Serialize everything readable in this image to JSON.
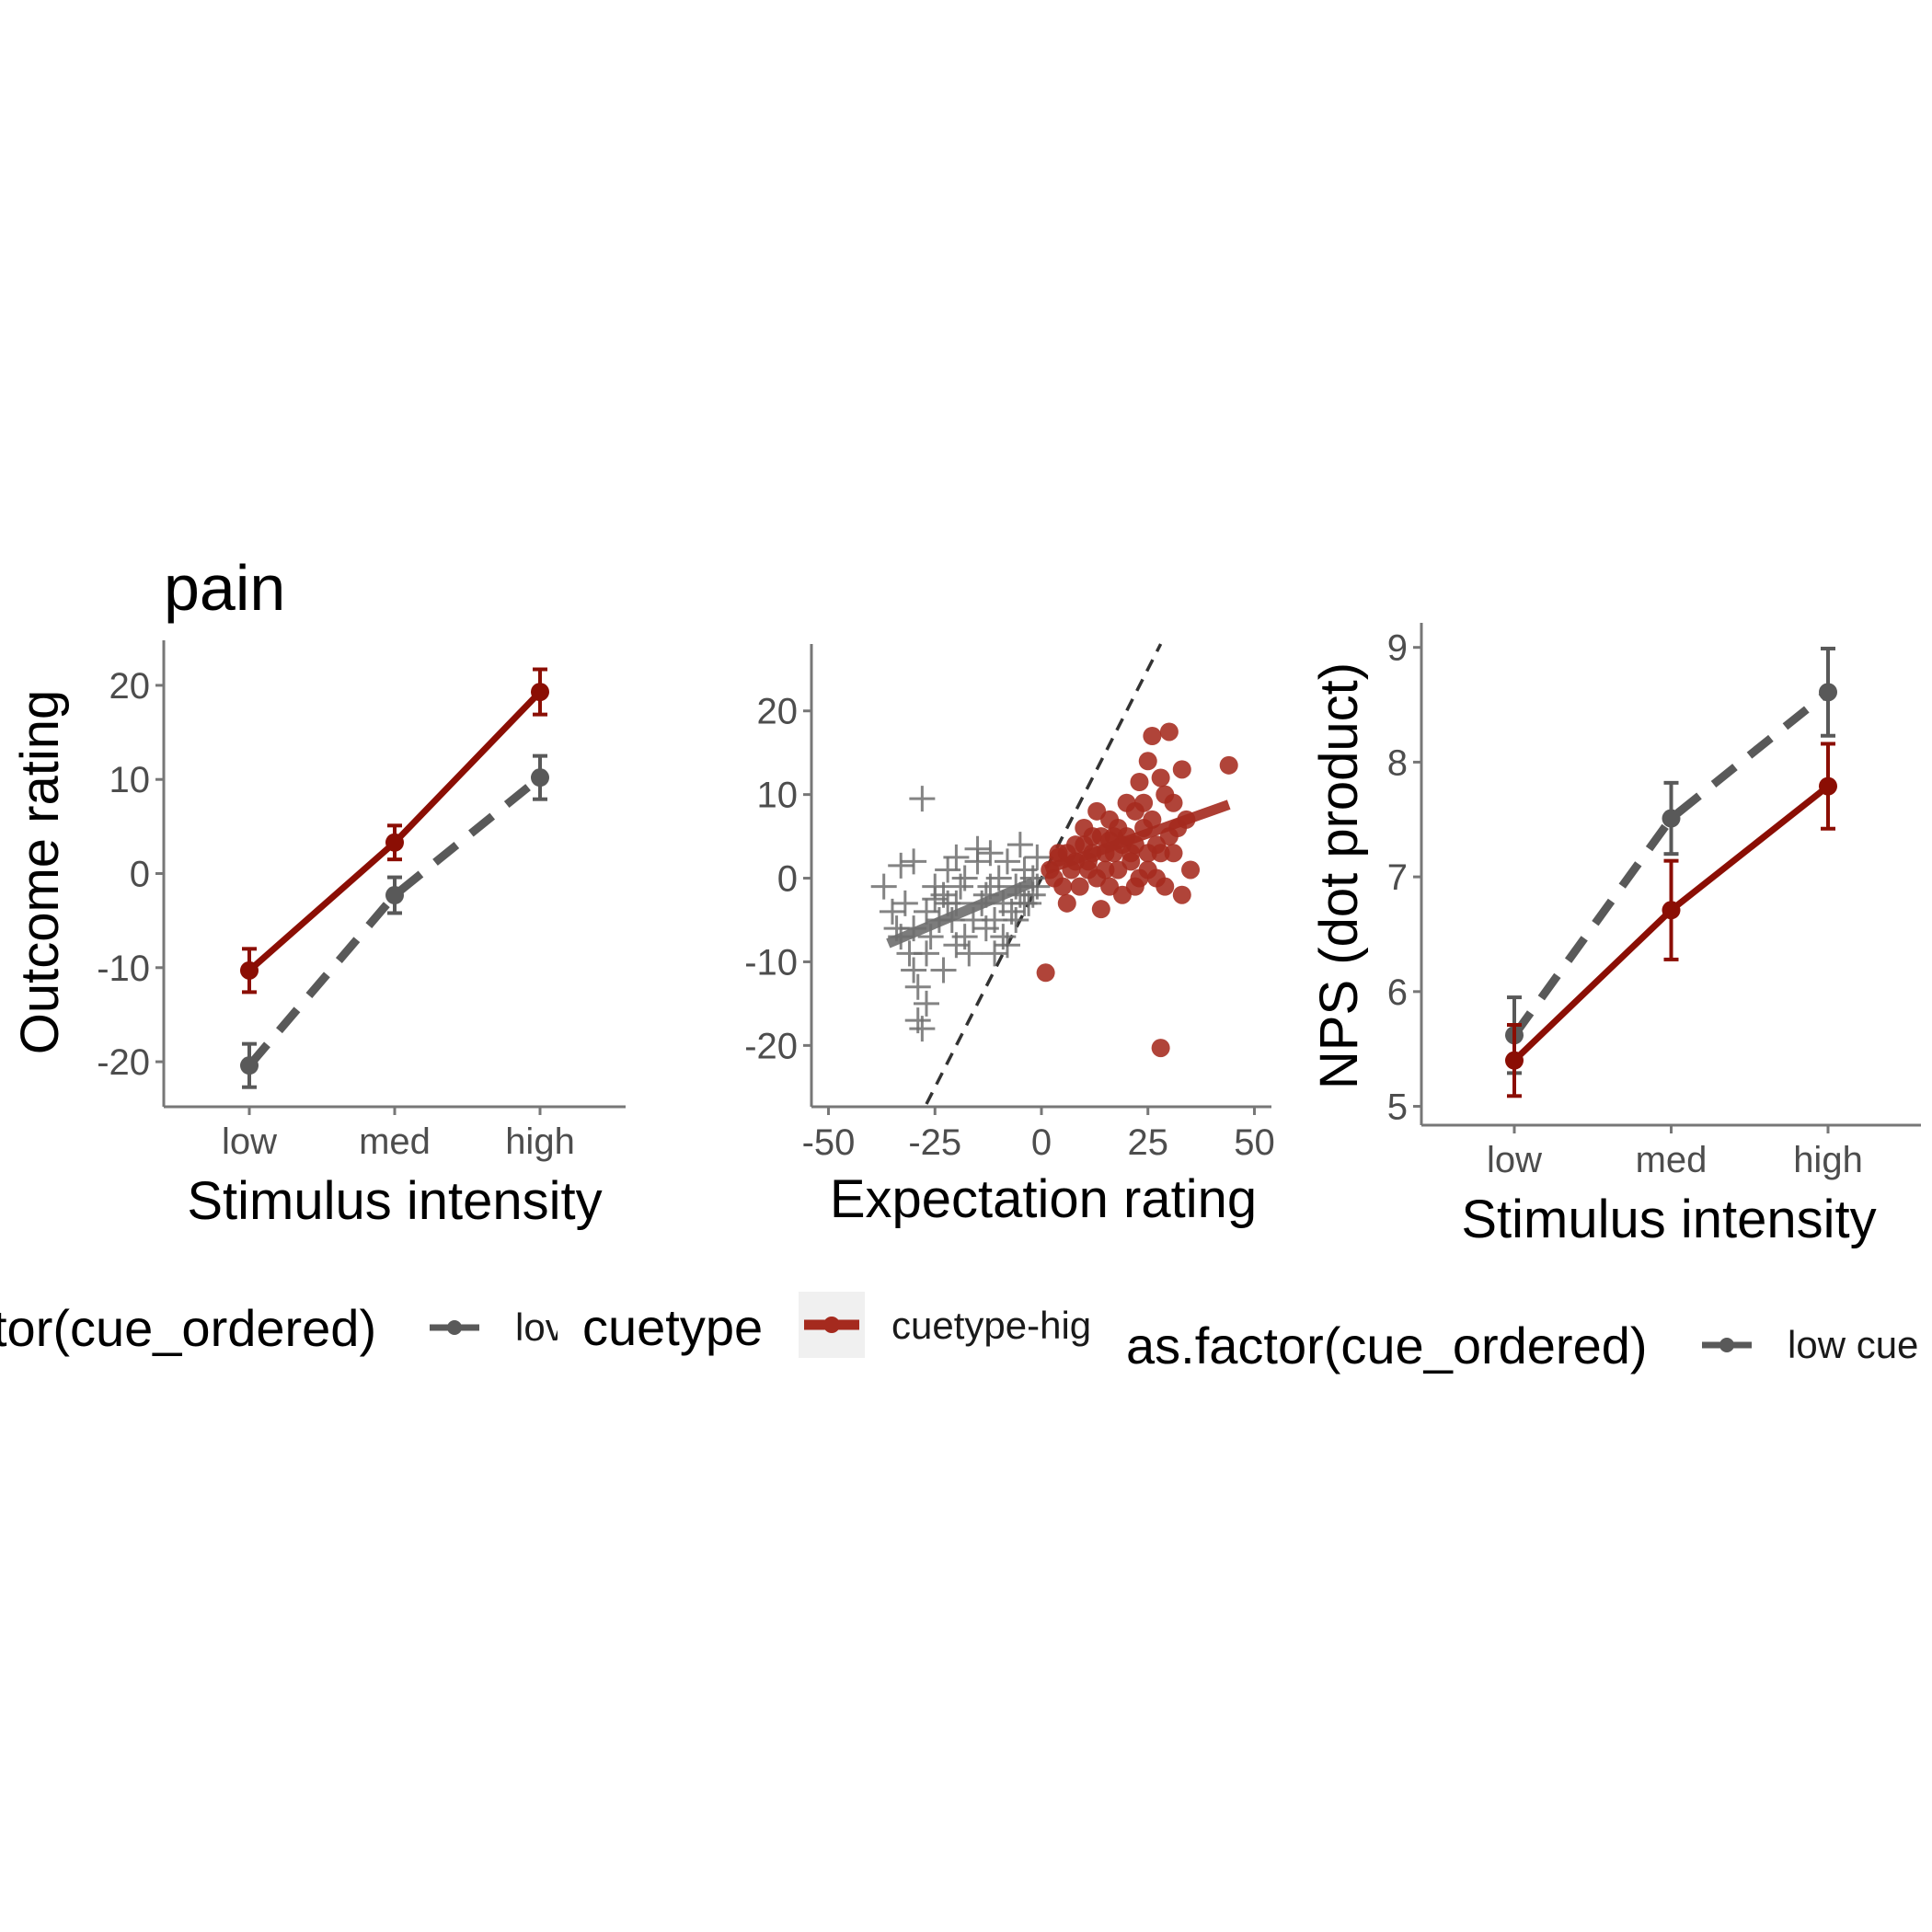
{
  "figure": {
    "colors": {
      "low_cue": "#595959",
      "high_cue": "#8b0e04",
      "scatter_low": "#6e6e6e",
      "scatter_high": "#a52a1e",
      "axis": "#777777",
      "identity_line": "#333333",
      "legend_key_bg": "#f0f0f0"
    }
  },
  "chart_data": [
    {
      "type": "line",
      "title": "pain",
      "xlabel": "Stimulus intensity",
      "ylabel": "Outcome rating",
      "categories": [
        "low",
        "med",
        "high"
      ],
      "yticks": [
        "-20",
        "-10",
        "0",
        "10",
        "20"
      ],
      "ylim": [
        -24,
        24
      ],
      "series": [
        {
          "key": "high_cue",
          "values": [
            -10.3,
            3.3,
            19.3
          ],
          "err": [
            2.3,
            1.8,
            2.4
          ],
          "line": "solid",
          "icon": "dot-icon"
        },
        {
          "key": "low_cue",
          "values": [
            -20.4,
            -2.3,
            10.2
          ],
          "err": [
            2.3,
            1.9,
            2.3
          ],
          "line": "dashed",
          "icon": "dot-icon"
        }
      ],
      "legend": {
        "title": "tor(cue_ordered)",
        "label": "lov"
      }
    },
    {
      "type": "scatter",
      "xlabel": "Expectation rating",
      "xticks": [
        "-50",
        "-25",
        "0",
        "25",
        "50"
      ],
      "yticks": [
        "-20",
        "-10",
        "0",
        "10",
        "20"
      ],
      "xlim": [
        -54,
        54
      ],
      "ylim": [
        -27,
        28
      ],
      "identity_line": true,
      "groups": [
        {
          "key": "low",
          "marker": "plus",
          "points": [
            [
              -28,
              9.5
            ],
            [
              -33,
              1.5
            ],
            [
              -37,
              -1
            ],
            [
              -30,
              2
            ],
            [
              -27,
              -4
            ],
            [
              -25,
              -2.5
            ],
            [
              -22,
              1
            ],
            [
              -20,
              -3
            ],
            [
              -18,
              0
            ],
            [
              -15,
              2
            ],
            [
              -13,
              -2
            ],
            [
              -12,
              3
            ],
            [
              -10,
              0
            ],
            [
              -8,
              2
            ],
            [
              -6,
              -1
            ],
            [
              -4,
              1
            ],
            [
              -2,
              0
            ],
            [
              -1,
              2.5
            ],
            [
              -5,
              4
            ],
            [
              -15,
              3.5
            ],
            [
              -20,
              2.5
            ],
            [
              -24,
              -5
            ],
            [
              -26,
              -7
            ],
            [
              -30,
              -6
            ],
            [
              -35,
              -4
            ],
            [
              -33,
              -7
            ],
            [
              -31,
              -9
            ],
            [
              -30,
              -11
            ],
            [
              -29,
              -13
            ],
            [
              -27,
              -15
            ],
            [
              -29,
              -17
            ],
            [
              -28,
              -18
            ],
            [
              -23,
              -11
            ],
            [
              -20,
              -8
            ],
            [
              -17,
              -9
            ],
            [
              -13,
              -6
            ],
            [
              -11,
              -9
            ],
            [
              -9,
              -7
            ],
            [
              -7,
              -4
            ],
            [
              -5,
              -2
            ],
            [
              -3,
              -3
            ],
            [
              -1,
              -1
            ],
            [
              -16,
              -5
            ],
            [
              -19,
              -1
            ],
            [
              -22,
              -3
            ],
            [
              -25,
              -1
            ],
            [
              -27,
              -9
            ],
            [
              -32,
              -3
            ],
            [
              -34,
              -6
            ],
            [
              -11,
              -5
            ],
            [
              -14,
              -3
            ],
            [
              -18,
              -7
            ],
            [
              -21,
              -5
            ],
            [
              -23,
              -2
            ],
            [
              -6,
              -5
            ],
            [
              -9,
              -3
            ],
            [
              -12,
              -1
            ],
            [
              -4,
              -3
            ],
            [
              -2,
              -2
            ],
            [
              -8,
              -8
            ]
          ]
        },
        {
          "key": "high",
          "marker": "dot",
          "points": [
            [
              1,
              -11.3
            ],
            [
              28,
              -20.3
            ],
            [
              44,
              13.5
            ],
            [
              26,
              17
            ],
            [
              30,
              17.5
            ],
            [
              25,
              14
            ],
            [
              23,
              11.5
            ],
            [
              28,
              12
            ],
            [
              33,
              13
            ],
            [
              24,
              9
            ],
            [
              29,
              10
            ],
            [
              31,
              9
            ],
            [
              34,
              7
            ],
            [
              22,
              8
            ],
            [
              20,
              5
            ],
            [
              18,
              6
            ],
            [
              16,
              4.5
            ],
            [
              14,
              5
            ],
            [
              12,
              3
            ],
            [
              10,
              4
            ],
            [
              8,
              2
            ],
            [
              6,
              3
            ],
            [
              4,
              2.5
            ],
            [
              3,
              0
            ],
            [
              5,
              -1
            ],
            [
              7,
              1
            ],
            [
              9,
              -1
            ],
            [
              11,
              2
            ],
            [
              13,
              0
            ],
            [
              15,
              1
            ],
            [
              17,
              3
            ],
            [
              19,
              4
            ],
            [
              21,
              2
            ],
            [
              23,
              0
            ],
            [
              25,
              1
            ],
            [
              27,
              0
            ],
            [
              29,
              -1
            ],
            [
              31,
              3
            ],
            [
              33,
              -2
            ],
            [
              35,
              1
            ],
            [
              27,
              4
            ],
            [
              22,
              -1
            ],
            [
              19,
              -2
            ],
            [
              16,
              -1
            ],
            [
              14,
              -3.7
            ],
            [
              6,
              -3
            ],
            [
              10,
              6
            ],
            [
              13,
              8
            ],
            [
              16,
              7
            ],
            [
              20,
              9
            ],
            [
              22,
              4
            ],
            [
              24,
              6
            ],
            [
              26,
              7
            ],
            [
              30,
              5
            ],
            [
              32,
              6
            ],
            [
              28,
              3
            ],
            [
              18,
              1
            ],
            [
              12,
              5
            ],
            [
              8,
              4
            ],
            [
              4,
              3
            ],
            [
              2,
              1
            ],
            [
              11,
              1
            ],
            [
              15,
              3
            ],
            [
              17,
              5
            ],
            [
              21,
              3
            ],
            [
              25,
              3
            ]
          ]
        }
      ],
      "fits": [
        {
          "key": "low",
          "x": [
            -36,
            -2
          ],
          "y": [
            -7.8,
            -0.5
          ]
        },
        {
          "key": "high",
          "x": [
            1,
            44
          ],
          "y": [
            1.0,
            8.8
          ]
        }
      ],
      "legend": {
        "title": "cuetype",
        "label": "cuetype-hig"
      }
    },
    {
      "type": "line",
      "xlabel": "Stimulus intensity",
      "ylabel": "NPS (dot product)",
      "categories": [
        "low",
        "med",
        "high"
      ],
      "yticks": [
        "5",
        "6",
        "7",
        "8",
        "9"
      ],
      "ylim": [
        4.9,
        9.15
      ],
      "series": [
        {
          "key": "low_cue",
          "values": [
            5.62,
            7.51,
            8.61
          ],
          "err": [
            0.33,
            0.31,
            0.38
          ],
          "line": "dashed",
          "icon": "dot-icon"
        },
        {
          "key": "high_cue",
          "values": [
            5.4,
            6.71,
            7.79
          ],
          "err": [
            0.31,
            0.43,
            0.37
          ],
          "line": "solid",
          "icon": "dot-icon"
        }
      ],
      "legend": {
        "title": "as.factor(cue_ordered)",
        "label": "low cue"
      }
    }
  ]
}
